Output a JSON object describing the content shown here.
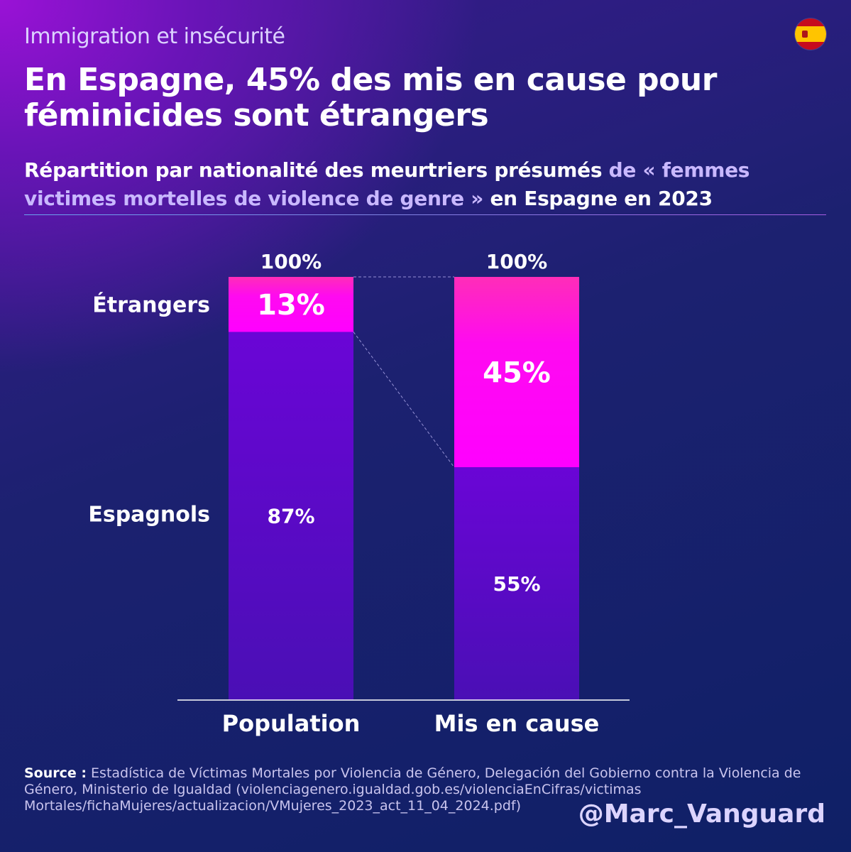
{
  "header": {
    "kicker": "Immigration et insécurité",
    "flag_icon": "spain-flag-icon",
    "title": "En Espagne, 45% des mis en cause pour féminicides sont étrangers",
    "subtitle_part1": "Répartition par nationalité des meurtriers présumés",
    "subtitle_part2": "de « femmes victimes mortelles de violence de genre »",
    "subtitle_part3": "en Espagne en 2023"
  },
  "chart_data": {
    "type": "bar",
    "stacked": true,
    "categories": [
      "Population",
      "Mis en cause"
    ],
    "series": [
      {
        "name": "Étrangers",
        "values": [
          13,
          45
        ],
        "labels": [
          "13%",
          "45%"
        ],
        "color": "#ff13e6"
      },
      {
        "name": "Espagnols",
        "values": [
          87,
          55
        ],
        "labels": [
          "87%",
          "55%"
        ],
        "color": "#5a08cc"
      }
    ],
    "totals": [
      "100%",
      "100%"
    ],
    "ylim": [
      0,
      100
    ],
    "legend": "left, inline series labels",
    "grid": false
  },
  "footer": {
    "source_label": "Source :",
    "source_text": "Estadística de Víctimas Mortales por Violencia de Género, Delegación del Gobierno contra la Violencia de Género, Ministerio de Igualdad (violenciagenero.igualdad.gob.es/violenciaEnCifras/victimas Mortales/fichaMujeres/actualizacion/VMujeres_2023_act_11_04_2024.pdf)",
    "handle": "@Marc_Vanguard"
  }
}
